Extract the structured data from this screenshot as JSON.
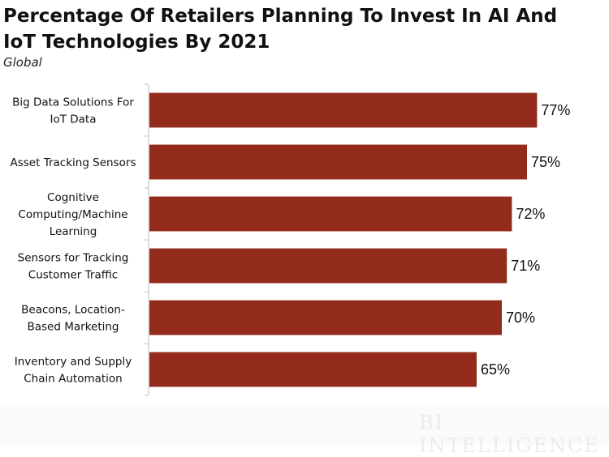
{
  "title": "Percentage Of Retailers Planning To Invest In AI And IoT Technologies By 2021",
  "subtitle": "Global",
  "watermark": "BI INTELLIGENCE",
  "colors": {
    "bar": "#922b1b",
    "axis": "#bfbfbf",
    "label": "#111111"
  },
  "chart_data": {
    "type": "bar",
    "orientation": "horizontal",
    "title": "Percentage Of Retailers Planning To Invest In AI And IoT Technologies By 2021",
    "subtitle": "Global",
    "categories": [
      [
        "Big Data Solutions For",
        "IoT Data"
      ],
      [
        "Asset Tracking Sensors"
      ],
      [
        "Cognitive",
        "Computing/Machine",
        "Learning"
      ],
      [
        "Sensors for Tracking",
        "Customer Traffic"
      ],
      [
        "Beacons, Location-",
        "Based Marketing"
      ],
      [
        "Inventory and Supply",
        "Chain Automation"
      ]
    ],
    "values": [
      77,
      75,
      72,
      71,
      70,
      65
    ],
    "value_labels": [
      "77%",
      "75%",
      "72%",
      "71%",
      "70%",
      "65%"
    ],
    "xlim": [
      0,
      100
    ],
    "grid": false,
    "legend": "none"
  }
}
